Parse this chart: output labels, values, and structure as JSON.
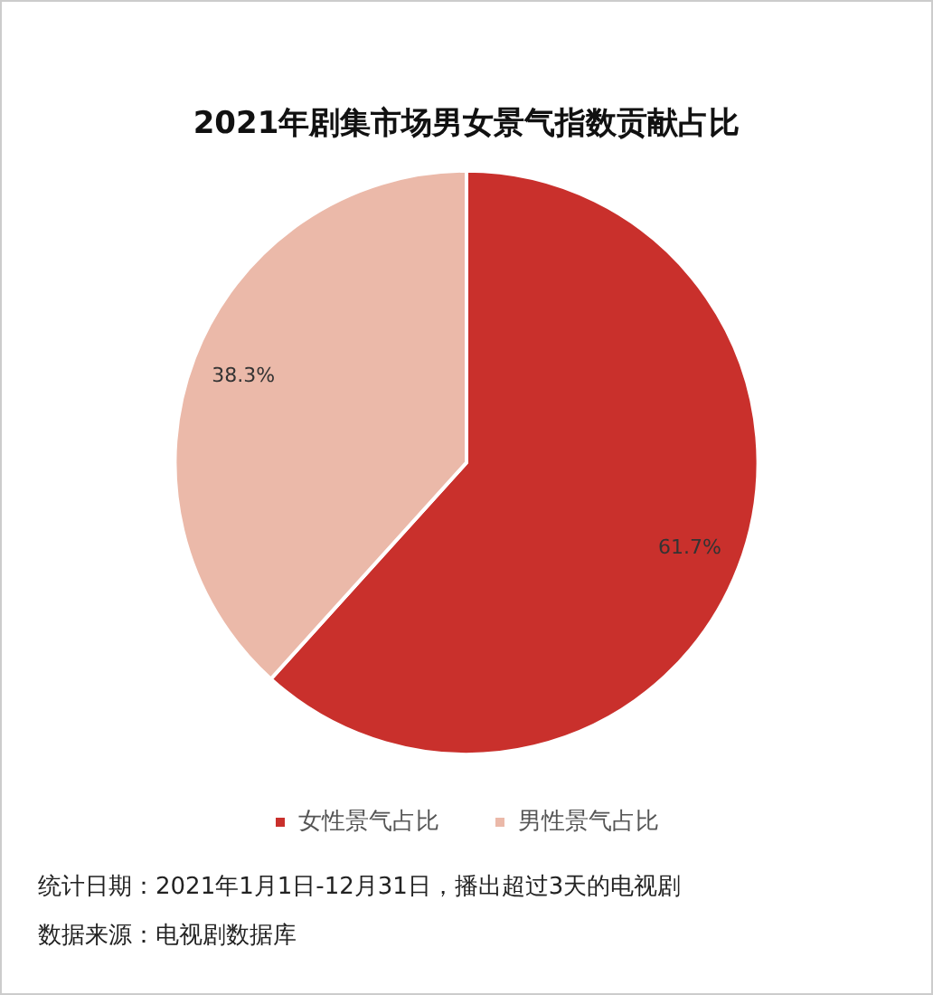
{
  "chart_data": {
    "type": "pie",
    "title": "2021年剧集市场男女景气指数贡献占比",
    "categories": [
      "女性景气占比",
      "男性景气占比"
    ],
    "values": [
      61.7,
      38.3
    ],
    "colors": [
      "#c9302c",
      "#ebb9a9"
    ],
    "value_labels": [
      "61.7%",
      "38.3%"
    ],
    "legend": "bottom",
    "annotations": [
      "统计日期：2021年1月1日-12月31日，播出超过3天的电视剧",
      "数据来源：电视剧数据库"
    ]
  }
}
